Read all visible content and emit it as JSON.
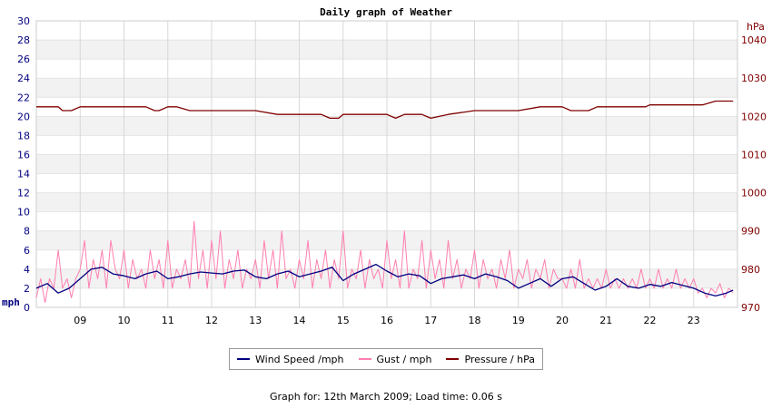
{
  "chart_data": {
    "type": "line",
    "title": "Daily graph of Weather",
    "y_left_unit": "mph",
    "y_right_unit": "hPa",
    "ylim_left": [
      0,
      30
    ],
    "ylim_right": [
      970,
      1045
    ],
    "yticks_left": [
      "0",
      "2",
      "4",
      "6",
      "8",
      "10",
      "12",
      "14",
      "16",
      "18",
      "20",
      "22",
      "24",
      "26",
      "28",
      "30"
    ],
    "yticks_right": [
      "970",
      "980",
      "990",
      "1000",
      "1010",
      "1020",
      "1030",
      "1040"
    ],
    "xticks": [
      "09",
      "10",
      "11",
      "12",
      "13",
      "14",
      "15",
      "16",
      "17",
      "18",
      "19",
      "20",
      "21",
      "22",
      "23"
    ],
    "xlim_hours": [
      8.0,
      24.0
    ],
    "grid": true,
    "legend_position": "bottom-center",
    "series": [
      {
        "name": "Wind Speed /mph",
        "axis": "left",
        "color": "#000080",
        "x": [
          8.0,
          8.25,
          8.5,
          8.75,
          9.0,
          9.25,
          9.5,
          9.75,
          10.0,
          10.25,
          10.5,
          10.75,
          11.0,
          11.25,
          11.5,
          11.75,
          12.0,
          12.25,
          12.5,
          12.75,
          13.0,
          13.25,
          13.5,
          13.75,
          14.0,
          14.25,
          14.5,
          14.75,
          15.0,
          15.25,
          15.5,
          15.75,
          16.0,
          16.25,
          16.5,
          16.75,
          17.0,
          17.25,
          17.5,
          17.75,
          18.0,
          18.25,
          18.5,
          18.75,
          19.0,
          19.25,
          19.5,
          19.75,
          20.0,
          20.25,
          20.5,
          20.75,
          21.0,
          21.25,
          21.5,
          21.75,
          22.0,
          22.25,
          22.5,
          22.75,
          23.0,
          23.25,
          23.5,
          23.75,
          23.9
        ],
        "values": [
          2.0,
          2.5,
          1.5,
          2.0,
          3.0,
          4.0,
          4.2,
          3.5,
          3.3,
          3.0,
          3.5,
          3.8,
          3.0,
          3.2,
          3.5,
          3.7,
          3.6,
          3.5,
          3.8,
          3.9,
          3.2,
          3.0,
          3.5,
          3.8,
          3.2,
          3.5,
          3.8,
          4.2,
          2.8,
          3.5,
          4.0,
          4.5,
          3.8,
          3.2,
          3.5,
          3.3,
          2.5,
          3.0,
          3.2,
          3.4,
          3.0,
          3.5,
          3.2,
          2.8,
          2.0,
          2.5,
          3.0,
          2.2,
          3.0,
          3.2,
          2.5,
          1.8,
          2.2,
          3.0,
          2.2,
          2.0,
          2.4,
          2.2,
          2.6,
          2.3,
          2.0,
          1.5,
          1.2,
          1.5,
          1.8
        ]
      },
      {
        "name": "Gust / mph",
        "axis": "left",
        "color": "#ff7fb0",
        "x": [
          8.0,
          8.1,
          8.2,
          8.3,
          8.4,
          8.5,
          8.6,
          8.7,
          8.8,
          8.9,
          9.0,
          9.1,
          9.2,
          9.3,
          9.4,
          9.5,
          9.6,
          9.7,
          9.8,
          9.9,
          10.0,
          10.1,
          10.2,
          10.3,
          10.4,
          10.5,
          10.6,
          10.7,
          10.8,
          10.9,
          11.0,
          11.1,
          11.2,
          11.3,
          11.4,
          11.5,
          11.6,
          11.7,
          11.8,
          11.9,
          12.0,
          12.1,
          12.2,
          12.3,
          12.4,
          12.5,
          12.6,
          12.7,
          12.8,
          12.9,
          13.0,
          13.1,
          13.2,
          13.3,
          13.4,
          13.5,
          13.6,
          13.7,
          13.8,
          13.9,
          14.0,
          14.1,
          14.2,
          14.3,
          14.4,
          14.5,
          14.6,
          14.7,
          14.8,
          14.9,
          15.0,
          15.1,
          15.2,
          15.3,
          15.4,
          15.5,
          15.6,
          15.7,
          15.8,
          15.9,
          16.0,
          16.1,
          16.2,
          16.3,
          16.4,
          16.5,
          16.6,
          16.7,
          16.8,
          16.9,
          17.0,
          17.1,
          17.2,
          17.3,
          17.4,
          17.5,
          17.6,
          17.7,
          17.8,
          17.9,
          18.0,
          18.1,
          18.2,
          18.3,
          18.4,
          18.5,
          18.6,
          18.7,
          18.8,
          18.9,
          19.0,
          19.1,
          19.2,
          19.3,
          19.4,
          19.5,
          19.6,
          19.7,
          19.8,
          19.9,
          20.0,
          20.1,
          20.2,
          20.3,
          20.4,
          20.5,
          20.6,
          20.7,
          20.8,
          20.9,
          21.0,
          21.1,
          21.2,
          21.3,
          21.4,
          21.5,
          21.6,
          21.7,
          21.8,
          21.9,
          22.0,
          22.1,
          22.2,
          22.3,
          22.4,
          22.5,
          22.6,
          22.7,
          22.8,
          22.9,
          23.0,
          23.1,
          23.2,
          23.3,
          23.4,
          23.5,
          23.6,
          23.7,
          23.8,
          23.9
        ],
        "values": [
          1,
          3,
          0.5,
          3,
          2,
          6,
          2,
          3,
          1,
          3,
          4,
          7,
          2,
          5,
          3,
          6,
          2,
          7,
          4,
          3,
          6,
          2,
          5,
          3,
          4,
          2,
          6,
          3,
          5,
          2,
          7,
          2,
          4,
          3,
          5,
          2,
          9,
          3,
          6,
          2,
          7,
          3,
          8,
          2,
          5,
          3,
          6,
          2,
          4,
          3,
          5,
          2,
          7,
          3,
          6,
          2,
          8,
          3,
          4,
          2,
          5,
          3,
          7,
          2,
          5,
          3,
          6,
          2,
          5,
          3,
          8,
          2,
          4,
          3,
          6,
          2,
          5,
          3,
          4,
          2,
          7,
          3,
          5,
          2,
          8,
          2,
          4,
          3,
          7,
          2,
          6,
          3,
          5,
          2,
          7,
          3,
          5,
          2,
          4,
          3,
          6,
          2,
          5,
          3,
          4,
          2,
          5,
          3,
          6,
          2,
          4,
          3,
          5,
          2,
          4,
          3,
          5,
          2,
          4,
          3,
          3,
          2,
          4,
          2,
          5,
          2,
          3,
          2,
          3,
          2,
          4,
          2,
          3,
          2,
          3,
          2,
          3,
          2,
          4,
          2,
          3,
          2,
          4,
          2,
          3,
          2,
          4,
          2,
          3,
          2,
          3,
          1.5,
          2,
          1,
          2,
          1.5,
          2.5,
          1,
          2,
          1.5
        ]
      },
      {
        "name": "Pressure / hPa",
        "axis": "right",
        "color": "#800000",
        "x": [
          8.0,
          8.5,
          8.6,
          8.8,
          9.0,
          9.5,
          10.0,
          10.5,
          10.7,
          10.8,
          11.0,
          11.2,
          11.5,
          12.0,
          12.5,
          13.0,
          13.5,
          14.0,
          14.5,
          14.7,
          14.9,
          15.0,
          15.5,
          16.0,
          16.2,
          16.4,
          16.8,
          17.0,
          17.4,
          18.0,
          18.5,
          19.0,
          19.5,
          20.0,
          20.2,
          20.4,
          20.6,
          20.8,
          21.0,
          21.5,
          21.9,
          22.0,
          22.5,
          23.0,
          23.2,
          23.5,
          23.9
        ],
        "values": [
          1022.5,
          1022.5,
          1021.5,
          1021.5,
          1022.5,
          1022.5,
          1022.5,
          1022.5,
          1021.5,
          1021.5,
          1022.5,
          1022.5,
          1021.5,
          1021.5,
          1021.5,
          1021.5,
          1020.5,
          1020.5,
          1020.5,
          1019.5,
          1019.5,
          1020.5,
          1020.5,
          1020.5,
          1019.5,
          1020.5,
          1020.5,
          1019.5,
          1020.5,
          1021.5,
          1021.5,
          1021.5,
          1022.5,
          1022.5,
          1021.5,
          1021.5,
          1021.5,
          1022.5,
          1022.5,
          1022.5,
          1022.5,
          1023.0,
          1023.0,
          1023.0,
          1023.0,
          1024.0,
          1024.0
        ]
      }
    ]
  },
  "footer_text": "Graph for: 12th March 2009; Load time: 0.06 s"
}
